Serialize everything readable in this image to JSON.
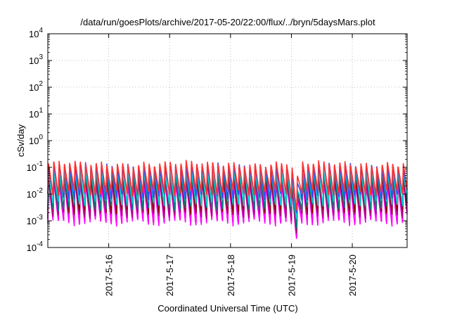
{
  "chart_data": {
    "type": "line",
    "title": "/data/run/goesPlots/archive/2017-05-20/22:00/flux/../bryn/5daysMars.plot",
    "xlabel": "Coordinated Universal Time (UTC)",
    "ylabel": "cSv/day",
    "yscale": "log",
    "ylim": [
      0.0001,
      10000
    ],
    "xlim": [
      0,
      5.9
    ],
    "grid": true,
    "x_ticks": [
      {
        "label": "2017-5-16",
        "value": 1
      },
      {
        "label": "2017-5-17",
        "value": 2
      },
      {
        "label": "2017-5-18",
        "value": 3
      },
      {
        "label": "2017-5-19",
        "value": 4
      },
      {
        "label": "2017-5-20",
        "value": 5
      }
    ],
    "y_ticks": [
      {
        "base": "10",
        "exp": "-4",
        "value": 0.0001
      },
      {
        "base": "10",
        "exp": "-3",
        "value": 0.001
      },
      {
        "base": "10",
        "exp": "-2",
        "value": 0.01
      },
      {
        "base": "10",
        "exp": "-1",
        "value": 0.1
      },
      {
        "base": "10",
        "exp": "0",
        "value": 1
      },
      {
        "base": "10",
        "exp": "1",
        "value": 10
      },
      {
        "base": "10",
        "exp": "2",
        "value": 100
      },
      {
        "base": "10",
        "exp": "3",
        "value": 1000
      },
      {
        "base": "10",
        "exp": "4",
        "value": 10000
      }
    ],
    "pattern": {
      "cycles_per_day": 11.5,
      "dip_day": 4.08,
      "dip_width_days": 0.06
    },
    "series": [
      {
        "color": "#ff00ff",
        "peak": 0.032,
        "trough": 0.0008,
        "dip_factor": 0.7
      },
      {
        "color": "#ff00ff",
        "peak": 0.028,
        "trough": 0.0012,
        "dip_factor": 0.7
      },
      {
        "color": "#b0007a",
        "peak": 0.04,
        "trough": 0.0016,
        "dip_factor": 0.75
      },
      {
        "color": "#8b0000",
        "peak": 0.052,
        "trough": 0.0022,
        "dip_factor": 0.75
      },
      {
        "color": "#008080",
        "peak": 0.065,
        "trough": 0.003,
        "dip_factor": 0.7
      },
      {
        "color": "#00ced1",
        "peak": 0.085,
        "trough": 0.0045,
        "dip_factor": 0.7
      },
      {
        "color": "#2a52ff",
        "peak": 0.12,
        "trough": 0.008,
        "dip_factor": 0.65
      },
      {
        "color": "#ff3030",
        "peak": 0.145,
        "trough": 0.011,
        "dip_factor": 0.6
      }
    ]
  }
}
